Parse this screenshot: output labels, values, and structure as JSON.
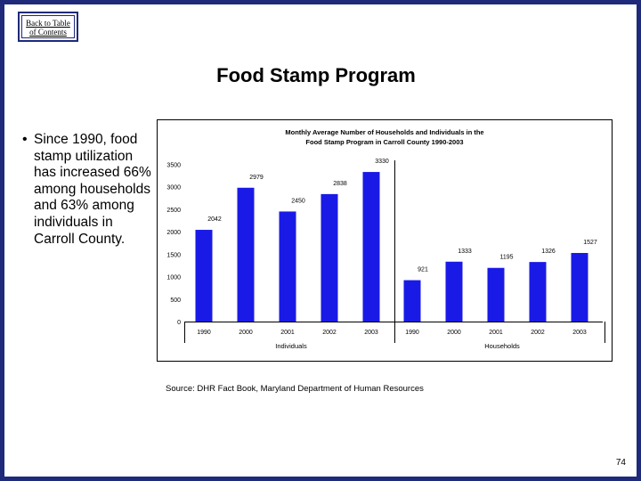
{
  "nav": {
    "back_link_line1": "Back to Table",
    "back_link_line2": "of Contents"
  },
  "slide": {
    "title": "Food Stamp Program",
    "bullet": "Since 1990, food stamp utilization has increased 66% among households and 63% among individuals in Carroll County.",
    "source": "Source: DHR Fact Book, Maryland Department of Human Resources",
    "page_number": "74"
  },
  "colors": {
    "frame": "#1f2a7a",
    "bar": "#1a1ae6"
  },
  "chart_data": {
    "type": "bar",
    "title_line1": "Monthly Average Number of Households and Individuals in the",
    "title_line2": "Food Stamp Program in Carroll County 1990-2003",
    "ylim": [
      0,
      3500
    ],
    "yticks": [
      0,
      500,
      1000,
      1500,
      2000,
      2500,
      3000,
      3500
    ],
    "groups": [
      {
        "name": "Individuals",
        "categories": [
          "1990",
          "2000",
          "2001",
          "2002",
          "2003"
        ],
        "values": [
          2042,
          2979,
          2450,
          2838,
          3330
        ],
        "labels": [
          "2042",
          "2979",
          "2450",
          "2838",
          "3330"
        ]
      },
      {
        "name": "Households",
        "categories": [
          "1990",
          "2000",
          "2001",
          "2002",
          "2003"
        ],
        "values": [
          921,
          1333,
          1195,
          1326,
          1527
        ],
        "labels": [
          "921",
          "1333",
          "1195",
          "1326",
          "1527"
        ]
      }
    ]
  }
}
